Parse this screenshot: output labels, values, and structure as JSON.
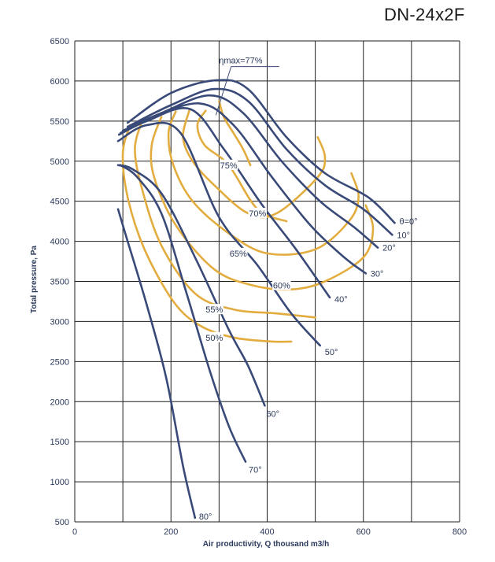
{
  "chart_data": {
    "type": "line",
    "title": "DN-24x2F",
    "xlabel": "Air productivity, Q thousand m3/h",
    "ylabel": "Total pressure, Pa",
    "xlim": [
      0,
      800
    ],
    "ylim": [
      500,
      6500
    ],
    "x_ticks": [
      "0",
      "200",
      "400",
      "600",
      "800"
    ],
    "y_ticks": [
      "500",
      "1000",
      "1500",
      "2000",
      "2500",
      "3000",
      "3500",
      "4000",
      "4500",
      "5000",
      "5500",
      "6000",
      "6500"
    ],
    "grid": true,
    "colors": {
      "blade": "#3a4a78",
      "efficiency": "#e2ac3f",
      "grid": "#1e1e1e"
    },
    "blade_angle_curves": [
      {
        "label": "θ=0°",
        "points": [
          [
            110,
            5480
          ],
          [
            200,
            5850
          ],
          [
            295,
            6010
          ],
          [
            360,
            5900
          ],
          [
            440,
            5300
          ],
          [
            520,
            4850
          ],
          [
            610,
            4550
          ],
          [
            665,
            4230
          ]
        ]
      },
      {
        "label": "10°",
        "points": [
          [
            110,
            5430
          ],
          [
            200,
            5700
          ],
          [
            290,
            5900
          ],
          [
            360,
            5750
          ],
          [
            440,
            5150
          ],
          [
            520,
            4700
          ],
          [
            600,
            4400
          ],
          [
            660,
            4080
          ]
        ]
      },
      {
        "label": "20°",
        "points": [
          [
            100,
            5380
          ],
          [
            180,
            5600
          ],
          [
            280,
            5820
          ],
          [
            350,
            5600
          ],
          [
            430,
            5000
          ],
          [
            510,
            4500
          ],
          [
            580,
            4180
          ],
          [
            630,
            3920
          ]
        ]
      },
      {
        "label": "30°",
        "points": [
          [
            95,
            5350
          ],
          [
            160,
            5550
          ],
          [
            260,
            5720
          ],
          [
            330,
            5450
          ],
          [
            410,
            4800
          ],
          [
            490,
            4200
          ],
          [
            560,
            3800
          ],
          [
            605,
            3600
          ]
        ]
      },
      {
        "label": "40°",
        "points": [
          [
            92,
            5330
          ],
          [
            150,
            5500
          ],
          [
            240,
            5650
          ],
          [
            310,
            5150
          ],
          [
            390,
            4450
          ],
          [
            460,
            3900
          ],
          [
            530,
            3300
          ]
        ]
      },
      {
        "label": "50°",
        "points": [
          [
            90,
            5250
          ],
          [
            150,
            5450
          ],
          [
            220,
            5350
          ],
          [
            300,
            4300
          ],
          [
            380,
            3700
          ],
          [
            450,
            3100
          ],
          [
            510,
            2700
          ]
        ]
      },
      {
        "label": "60°",
        "points": [
          [
            90,
            4950
          ],
          [
            120,
            4900
          ],
          [
            180,
            4600
          ],
          [
            250,
            3800
          ],
          [
            320,
            2900
          ],
          [
            360,
            2450
          ],
          [
            395,
            1950
          ]
        ]
      },
      {
        "label": "70°",
        "points": [
          [
            95,
            4950
          ],
          [
            130,
            4800
          ],
          [
            180,
            4350
          ],
          [
            230,
            3400
          ],
          [
            280,
            2400
          ],
          [
            320,
            1700
          ],
          [
            355,
            1250
          ]
        ]
      },
      {
        "label": "80°",
        "points": [
          [
            90,
            4400
          ],
          [
            110,
            4000
          ],
          [
            150,
            3200
          ],
          [
            190,
            2300
          ],
          [
            225,
            1200
          ],
          [
            250,
            550
          ]
        ]
      }
    ],
    "efficiency_curves": [
      {
        "label": "ηmax=77%",
        "points": [
          [
            300,
            5750
          ],
          [
            310,
            5550
          ],
          [
            330,
            5350
          ],
          [
            350,
            5150
          ],
          [
            365,
            4950
          ]
        ]
      },
      {
        "label": "75%",
        "points": [
          [
            272,
            5630
          ],
          [
            255,
            5450
          ],
          [
            270,
            5200
          ],
          [
            320,
            4950
          ],
          [
            380,
            4400
          ],
          [
            440,
            4250
          ]
        ]
      },
      {
        "label": "70%",
        "points": [
          [
            238,
            5630
          ],
          [
            225,
            5300
          ],
          [
            245,
            5000
          ],
          [
            290,
            4700
          ],
          [
            360,
            4350
          ],
          [
            420,
            4350
          ],
          [
            505,
            4800
          ],
          [
            520,
            5050
          ],
          [
            505,
            5300
          ]
        ]
      },
      {
        "label": "65%",
        "points": [
          [
            210,
            5620
          ],
          [
            195,
            5350
          ],
          [
            205,
            4950
          ],
          [
            245,
            4500
          ],
          [
            320,
            4100
          ],
          [
            400,
            3850
          ],
          [
            500,
            3900
          ],
          [
            570,
            4250
          ],
          [
            590,
            4550
          ],
          [
            575,
            4850
          ]
        ]
      },
      {
        "label": "60%",
        "points": [
          [
            180,
            5550
          ],
          [
            160,
            5200
          ],
          [
            165,
            4800
          ],
          [
            210,
            4200
          ],
          [
            290,
            3650
          ],
          [
            370,
            3450
          ],
          [
            450,
            3400
          ],
          [
            520,
            3500
          ],
          [
            600,
            3800
          ],
          [
            620,
            4150
          ],
          [
            605,
            4450
          ]
        ]
      },
      {
        "label": "55%",
        "points": [
          [
            140,
            5500
          ],
          [
            125,
            5150
          ],
          [
            140,
            4650
          ],
          [
            180,
            3950
          ],
          [
            250,
            3350
          ],
          [
            330,
            3150
          ],
          [
            420,
            3100
          ],
          [
            500,
            3050
          ]
        ]
      },
      {
        "label": "50%",
        "points": [
          [
            115,
            5450
          ],
          [
            100,
            5100
          ],
          [
            110,
            4550
          ],
          [
            145,
            3900
          ],
          [
            205,
            3250
          ],
          [
            260,
            2950
          ],
          [
            330,
            2800
          ],
          [
            410,
            2750
          ],
          [
            450,
            2750
          ]
        ]
      }
    ]
  }
}
